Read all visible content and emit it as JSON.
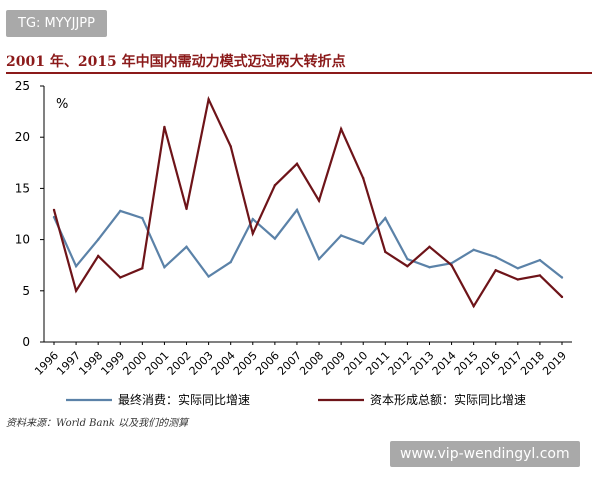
{
  "watermark_top": "TG: MYYJJPP",
  "watermark_bottom": "www.vip-wendingyl.com",
  "title": "2001 年、2015 年中国内需动力模式迈过两大转折点",
  "source": "资料来源：World Bank 以及我们的测算",
  "colors": {
    "consumption": "#5b82a8",
    "investment": "#6e1419",
    "title": "#8b1a1a"
  },
  "chart_data": {
    "type": "line",
    "unit_label": "%",
    "ylim": [
      0,
      25
    ],
    "yticks": [
      0,
      5,
      10,
      15,
      20,
      25
    ],
    "grid": false,
    "legend_position": "bottom",
    "x": [
      "1996",
      "1997",
      "1998",
      "1999",
      "2000",
      "2001",
      "2002",
      "2003",
      "2004",
      "2005",
      "2006",
      "2007",
      "2008",
      "2009",
      "2010",
      "2011",
      "2012",
      "2013",
      "2014",
      "2015",
      "2016",
      "2017",
      "2018",
      "2019"
    ],
    "series": [
      {
        "name": "最终消费：实际同比增速",
        "color": "#5b82a8",
        "values": [
          12.2,
          7.4,
          10.0,
          12.8,
          12.1,
          7.3,
          9.3,
          6.4,
          7.8,
          12.0,
          10.1,
          12.9,
          8.1,
          10.4,
          9.6,
          12.1,
          8.1,
          7.3,
          7.7,
          9.0,
          8.3,
          7.2,
          8.0,
          6.3
        ]
      },
      {
        "name": "资本形成总额：实际同比增速",
        "color": "#6e1419",
        "values": [
          12.9,
          5.0,
          8.4,
          6.3,
          7.2,
          21.0,
          13.0,
          23.7,
          19.1,
          10.6,
          15.3,
          17.4,
          13.8,
          20.8,
          16.0,
          8.8,
          7.4,
          9.3,
          7.5,
          3.5,
          7.0,
          6.1,
          6.5,
          4.4
        ]
      }
    ]
  }
}
